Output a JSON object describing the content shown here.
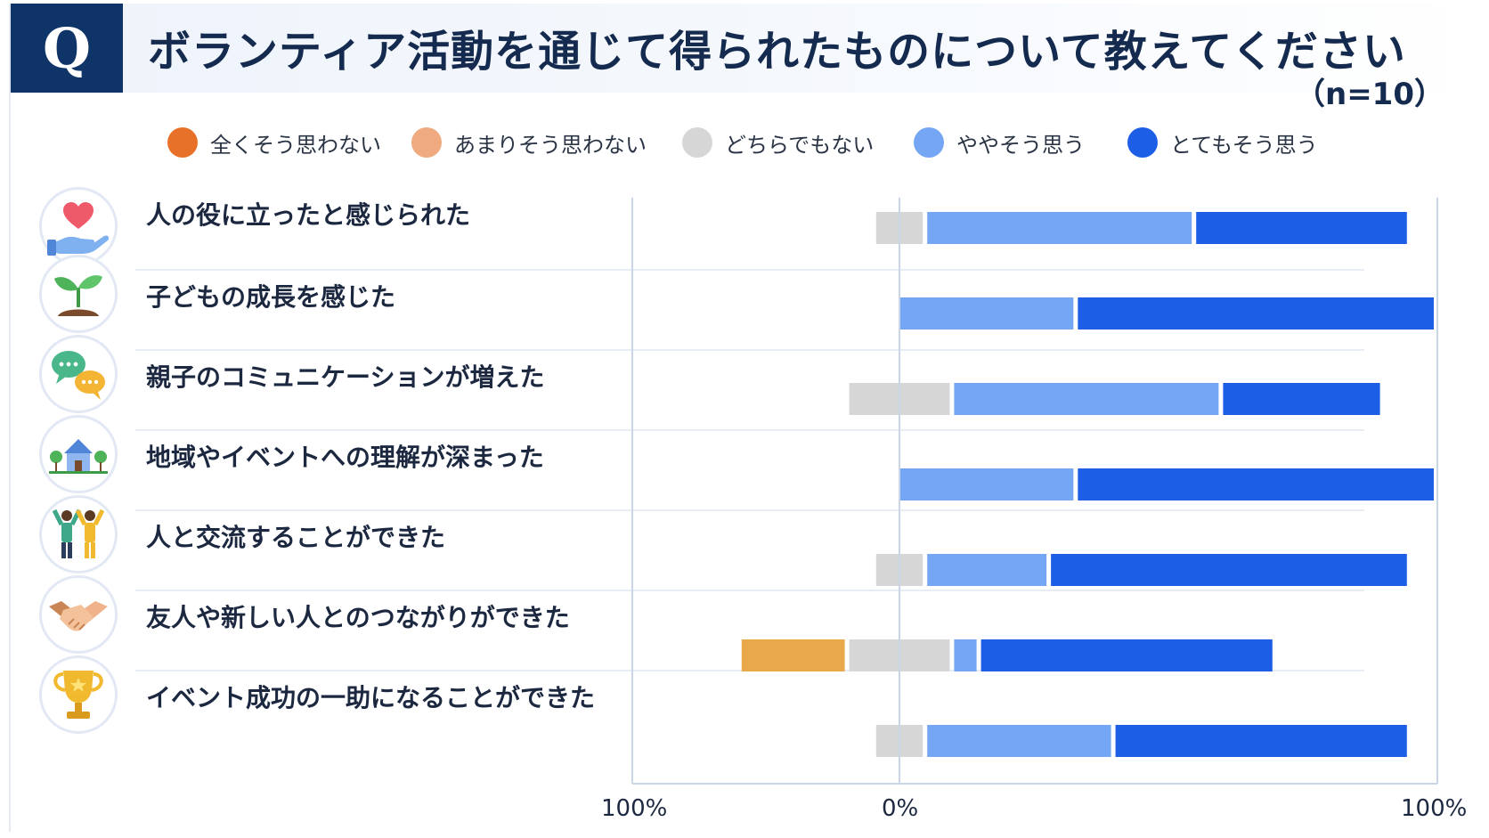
{
  "header": {
    "q_mark": "Q",
    "title": "ボランティア活動を通じて得られたものについて教えてください",
    "n_label": "（n=10）"
  },
  "legend": [
    {
      "label": "全くそう思わない",
      "color": "#e8712a"
    },
    {
      "label": "あまりそう思わない",
      "color": "#f0aa80"
    },
    {
      "label": "どちらでもない",
      "color": "#d6d6d6"
    },
    {
      "label": "ややそう思う",
      "color": "#74a6f3"
    },
    {
      "label": "とてもそう思う",
      "color": "#1d5ee6"
    }
  ],
  "rows": [
    {
      "label": "人の役に立ったと感じられた",
      "icon": "heart-hand-icon"
    },
    {
      "label": "子どもの成長を感じた",
      "icon": "sprout-icon"
    },
    {
      "label": "親子のコミュニケーションが増えた",
      "icon": "speech-bubbles-icon"
    },
    {
      "label": "地域やイベントへの理解が深まった",
      "icon": "house-trees-icon"
    },
    {
      "label": "人と交流することができた",
      "icon": "people-cheering-icon"
    },
    {
      "label": "友人や新しい人とのつながりができた",
      "icon": "handshake-icon"
    },
    {
      "label": "イベント成功の一助になることができた",
      "icon": "trophy-icon"
    }
  ],
  "axis": {
    "left": "100%",
    "center": "0%",
    "right": "100%"
  },
  "chart_data": {
    "type": "bar",
    "orientation": "diverging-stacked-horizontal",
    "categories": [
      "人の役に立ったと感じられた",
      "子どもの成長を感じた",
      "親子のコミュニケーションが増えた",
      "地域やイベントへの理解が深まった",
      "人と交流することができた",
      "友人や新しい人とのつながりができた",
      "イベント成功の一助になることができた"
    ],
    "series": [
      {
        "name": "全くそう思わない",
        "color": "#e8712a",
        "values": [
          0,
          0,
          0,
          0,
          0,
          0,
          0
        ]
      },
      {
        "name": "あまりそう思わない",
        "color": "#e9a84a",
        "values": [
          0,
          0,
          0,
          0,
          0,
          20,
          0
        ]
      },
      {
        "name": "どちらでもない",
        "color": "#d6d6d6",
        "values": [
          10,
          0,
          20,
          0,
          10,
          20,
          10
        ]
      },
      {
        "name": "ややそう思う",
        "color": "#74a6f3",
        "values": [
          50,
          33,
          50,
          33,
          23,
          5,
          35
        ]
      },
      {
        "name": "とてもそう思う",
        "color": "#1d5ee6",
        "values": [
          40,
          67,
          30,
          67,
          67,
          55,
          55
        ]
      }
    ],
    "xlim": [
      -100,
      100
    ],
    "tick_labels": [
      "100%",
      "0%",
      "100%"
    ],
    "neutral_split": "centered"
  }
}
